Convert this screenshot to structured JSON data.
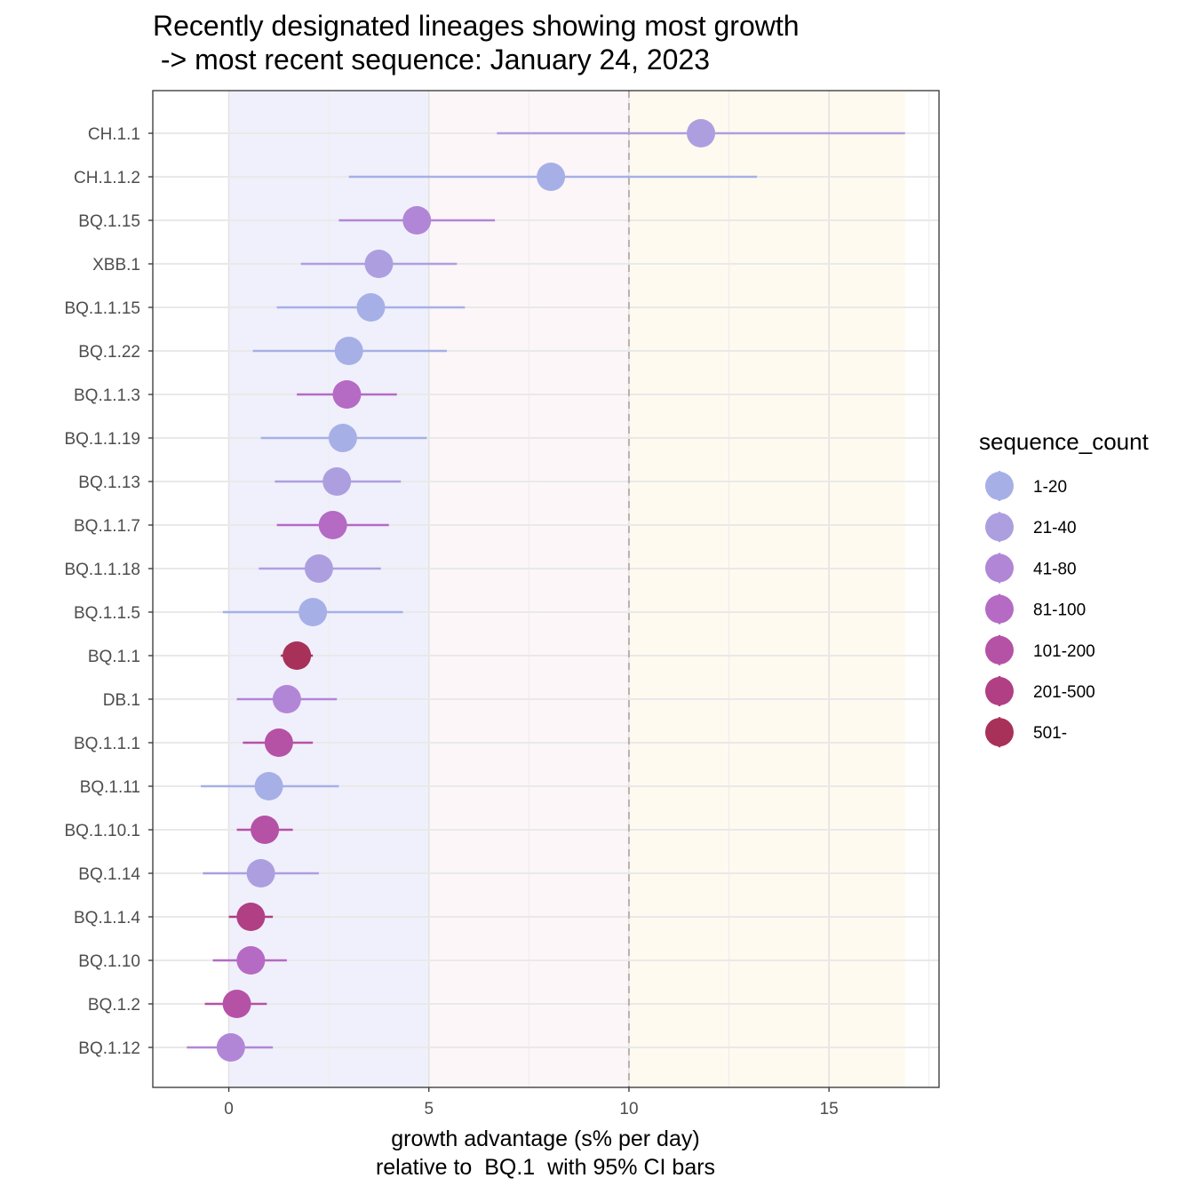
{
  "chart_data": {
    "type": "scatter",
    "title_lines": [
      "Recently designated lineages showing most growth",
      " -> most recent sequence: January 24, 2023"
    ],
    "xlabel_lines": [
      "growth advantage (s% per day)",
      "relative to  BQ.1  with 95% CI bars"
    ],
    "ylabel": "",
    "xlim": [
      -1.9,
      17.75
    ],
    "xticks": [
      0,
      5,
      10,
      15
    ],
    "xtick_labels": [
      "0",
      "5",
      "10",
      "15"
    ],
    "reference_line_x": 10,
    "shaded_bands": [
      {
        "from": 0,
        "to": 5,
        "color": "#f0f0fc"
      },
      {
        "from": 5,
        "to": 10,
        "color": "#fdf6f8"
      },
      {
        "from": 10,
        "to": 16.9,
        "color": "#fffaf0"
      }
    ],
    "grid": true,
    "legend": {
      "title": "sequence_count",
      "position": "right",
      "entries": [
        {
          "label": "1-20",
          "color": "#a6b0e6"
        },
        {
          "label": "21-40",
          "color": "#ad9fdf"
        },
        {
          "label": "41-80",
          "color": "#b286d6"
        },
        {
          "label": "81-100",
          "color": "#b56ac4"
        },
        {
          "label": "101-200",
          "color": "#b552a6"
        },
        {
          "label": "201-500",
          "color": "#b03f84"
        },
        {
          "label": "501-",
          "color": "#a8315a"
        }
      ]
    },
    "categories": [
      "CH.1.1",
      "CH.1.1.2",
      "BQ.1.15",
      "XBB.1",
      "BQ.1.1.15",
      "BQ.1.22",
      "BQ.1.1.3",
      "BQ.1.1.19",
      "BQ.1.13",
      "BQ.1.1.7",
      "BQ.1.1.18",
      "BQ.1.1.5",
      "BQ.1.1",
      "DB.1",
      "BQ.1.1.1",
      "BQ.1.11",
      "BQ.1.10.1",
      "BQ.1.14",
      "BQ.1.1.4",
      "BQ.1.10",
      "BQ.1.2",
      "BQ.1.12"
    ],
    "points": [
      {
        "lineage": "CH.1.1",
        "estimate": 11.8,
        "ci_low": 6.7,
        "ci_high": 16.9,
        "group": "21-40"
      },
      {
        "lineage": "CH.1.1.2",
        "estimate": 8.05,
        "ci_low": 3.0,
        "ci_high": 13.2,
        "group": "1-20"
      },
      {
        "lineage": "BQ.1.15",
        "estimate": 4.7,
        "ci_low": 2.75,
        "ci_high": 6.65,
        "group": "41-80"
      },
      {
        "lineage": "XBB.1",
        "estimate": 3.75,
        "ci_low": 1.8,
        "ci_high": 5.7,
        "group": "21-40"
      },
      {
        "lineage": "BQ.1.1.15",
        "estimate": 3.55,
        "ci_low": 1.2,
        "ci_high": 5.9,
        "group": "1-20"
      },
      {
        "lineage": "BQ.1.22",
        "estimate": 3.0,
        "ci_low": 0.6,
        "ci_high": 5.45,
        "group": "1-20"
      },
      {
        "lineage": "BQ.1.1.3",
        "estimate": 2.95,
        "ci_low": 1.7,
        "ci_high": 4.2,
        "group": "81-100"
      },
      {
        "lineage": "BQ.1.1.19",
        "estimate": 2.85,
        "ci_low": 0.8,
        "ci_high": 4.95,
        "group": "1-20"
      },
      {
        "lineage": "BQ.1.13",
        "estimate": 2.7,
        "ci_low": 1.15,
        "ci_high": 4.3,
        "group": "21-40"
      },
      {
        "lineage": "BQ.1.1.7",
        "estimate": 2.6,
        "ci_low": 1.2,
        "ci_high": 4.0,
        "group": "81-100"
      },
      {
        "lineage": "BQ.1.1.18",
        "estimate": 2.25,
        "ci_low": 0.75,
        "ci_high": 3.8,
        "group": "21-40"
      },
      {
        "lineage": "BQ.1.1.5",
        "estimate": 2.1,
        "ci_low": -0.15,
        "ci_high": 4.35,
        "group": "1-20"
      },
      {
        "lineage": "BQ.1.1",
        "estimate": 1.7,
        "ci_low": 1.3,
        "ci_high": 2.1,
        "group": "501-"
      },
      {
        "lineage": "DB.1",
        "estimate": 1.45,
        "ci_low": 0.2,
        "ci_high": 2.7,
        "group": "41-80"
      },
      {
        "lineage": "BQ.1.1.1",
        "estimate": 1.25,
        "ci_low": 0.35,
        "ci_high": 2.1,
        "group": "101-200"
      },
      {
        "lineage": "BQ.1.11",
        "estimate": 1.0,
        "ci_low": -0.7,
        "ci_high": 2.75,
        "group": "1-20"
      },
      {
        "lineage": "BQ.1.10.1",
        "estimate": 0.9,
        "ci_low": 0.2,
        "ci_high": 1.6,
        "group": "101-200"
      },
      {
        "lineage": "BQ.1.14",
        "estimate": 0.8,
        "ci_low": -0.65,
        "ci_high": 2.25,
        "group": "21-40"
      },
      {
        "lineage": "BQ.1.1.4",
        "estimate": 0.55,
        "ci_low": 0.0,
        "ci_high": 1.1,
        "group": "201-500"
      },
      {
        "lineage": "BQ.1.10",
        "estimate": 0.55,
        "ci_low": -0.4,
        "ci_high": 1.45,
        "group": "81-100"
      },
      {
        "lineage": "BQ.1.2",
        "estimate": 0.2,
        "ci_low": -0.6,
        "ci_high": 0.95,
        "group": "101-200"
      },
      {
        "lineage": "BQ.1.12",
        "estimate": 0.05,
        "ci_low": -1.05,
        "ci_high": 1.1,
        "group": "41-80"
      }
    ]
  }
}
